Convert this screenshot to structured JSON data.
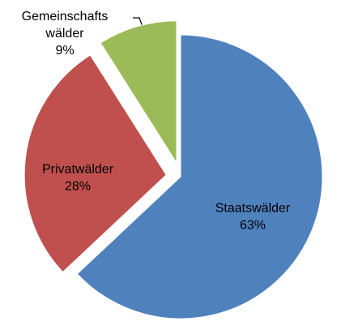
{
  "chart_data": {
    "type": "pie",
    "categories": [
      "Staatswälder",
      "Privatwälder",
      "Gemeinschafts wälder"
    ],
    "values": [
      63,
      28,
      9
    ],
    "value_labels": [
      "63%",
      "28%",
      "9%"
    ],
    "colors": [
      "#4f81bd",
      "#c0504d",
      "#9bbb59"
    ]
  }
}
